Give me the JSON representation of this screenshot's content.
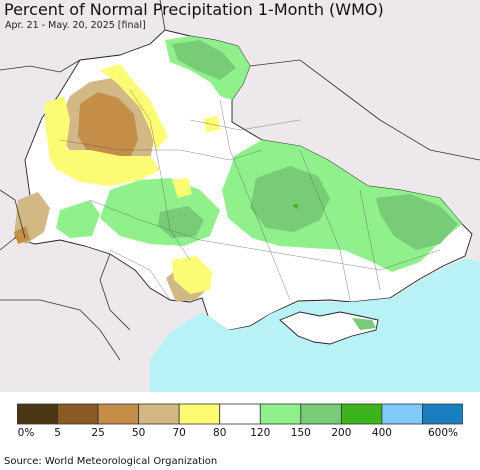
{
  "title": "Percent of Normal Precipitation 1-Month (WMO)",
  "subtitle": "Apr. 21 - May. 20, 2025 [final]",
  "source": "Source: World Meteorological Organization",
  "legend": {
    "colors": [
      "#4a3515",
      "#8a5a25",
      "#c48d48",
      "#d1b884",
      "#fcfc74",
      "#ffffff",
      "#90f08c",
      "#78cc78",
      "#3cb41c",
      "#7fc9fb",
      "#1a7fc0"
    ],
    "labels": [
      "0%",
      "5",
      "25",
      "50",
      "70",
      "80",
      "120",
      "150",
      "200",
      "400",
      "600%"
    ]
  },
  "colors": {
    "outside": "#ede8ec",
    "sea": "#b9f2f6",
    "normal": "#ffffff"
  }
}
